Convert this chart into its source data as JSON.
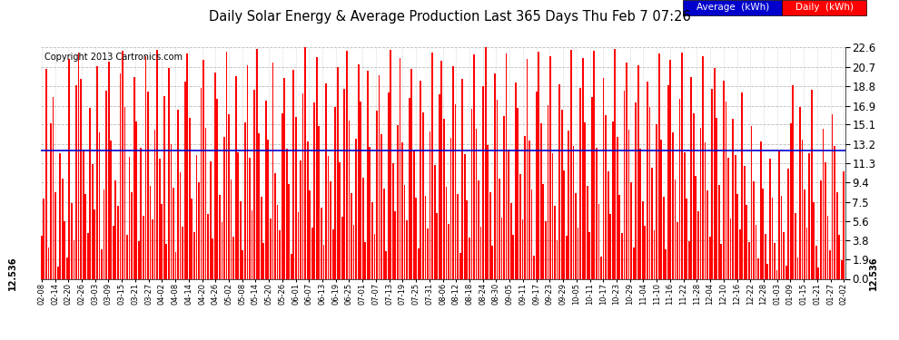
{
  "title": "Daily Solar Energy & Average Production Last 365 Days Thu Feb 7 07:26",
  "copyright": "Copyright 2013 Cartronics.com",
  "average_value": 12.536,
  "bar_color": "#ff0000",
  "average_line_color": "#0000cd",
  "background_color": "#ffffff",
  "plot_bg_color": "#ffffff",
  "yticks": [
    0.0,
    1.9,
    3.8,
    5.6,
    7.5,
    9.4,
    11.3,
    13.2,
    15.1,
    16.9,
    18.8,
    20.7,
    22.6
  ],
  "ylim": [
    0.0,
    22.6
  ],
  "legend_avg_bg": "#0000cc",
  "legend_daily_bg": "#ff0000",
  "legend_text_color": "#ffffff",
  "xtick_labels": [
    "02-08",
    "02-14",
    "02-20",
    "02-26",
    "03-03",
    "03-09",
    "03-15",
    "03-21",
    "03-27",
    "04-02",
    "04-08",
    "04-14",
    "04-20",
    "04-26",
    "05-02",
    "05-08",
    "05-14",
    "05-20",
    "05-26",
    "06-01",
    "06-07",
    "06-13",
    "06-19",
    "06-25",
    "07-01",
    "07-07",
    "07-13",
    "07-19",
    "07-25",
    "07-31",
    "08-06",
    "08-12",
    "08-18",
    "08-24",
    "08-30",
    "09-05",
    "09-11",
    "09-17",
    "09-23",
    "09-29",
    "10-05",
    "10-11",
    "10-17",
    "10-23",
    "10-29",
    "11-04",
    "11-10",
    "11-16",
    "11-22",
    "11-28",
    "12-04",
    "12-10",
    "12-16",
    "12-22",
    "12-28",
    "01-03",
    "01-09",
    "01-15",
    "01-21",
    "01-27",
    "02-02"
  ],
  "daily_values": [
    4.2,
    7.8,
    20.5,
    3.1,
    15.2,
    17.8,
    8.5,
    1.2,
    12.3,
    9.8,
    5.6,
    2.1,
    21.5,
    7.4,
    3.8,
    18.9,
    22.1,
    19.5,
    12.6,
    8.3,
    4.5,
    16.7,
    11.2,
    6.8,
    20.8,
    14.3,
    2.9,
    8.7,
    18.4,
    21.2,
    13.5,
    5.2,
    9.6,
    7.1,
    20.1,
    22.3,
    16.8,
    4.3,
    11.9,
    8.5,
    19.7,
    15.4,
    3.7,
    12.8,
    6.2,
    21.8,
    18.3,
    9.1,
    5.8,
    14.6,
    22.4,
    11.7,
    7.3,
    17.9,
    3.4,
    20.6,
    13.2,
    8.9,
    2.6,
    16.5,
    10.4,
    5.1,
    19.3,
    22.0,
    15.7,
    7.8,
    4.6,
    12.1,
    9.4,
    18.7,
    21.4,
    14.8,
    6.3,
    11.5,
    3.9,
    20.2,
    17.6,
    8.2,
    5.5,
    13.9,
    22.2,
    16.1,
    9.7,
    4.1,
    19.8,
    12.4,
    7.6,
    2.8,
    15.3,
    20.9,
    11.8,
    6.7,
    18.5,
    22.5,
    14.2,
    8.0,
    3.5,
    17.4,
    13.6,
    5.9,
    21.1,
    10.3,
    7.2,
    4.7,
    16.2,
    19.6,
    12.7,
    9.3,
    2.4,
    20.4,
    15.8,
    6.5,
    11.6,
    18.1,
    22.6,
    13.4,
    8.6,
    5.0,
    17.2,
    21.7,
    14.9,
    7.0,
    3.3,
    19.1,
    12.0,
    9.5,
    4.8,
    16.8,
    20.7,
    11.4,
    6.1,
    18.6,
    22.3,
    15.5,
    8.4,
    5.3,
    13.7,
    21.0,
    17.3,
    9.9,
    3.6,
    20.3,
    12.9,
    7.5,
    4.4,
    16.4,
    19.9,
    14.1,
    8.8,
    2.7,
    18.2,
    22.4,
    11.3,
    6.6,
    15.0,
    21.6,
    13.3,
    9.2,
    5.7,
    17.7,
    20.5,
    12.5,
    7.9,
    3.0,
    19.4,
    16.3,
    8.1,
    4.9,
    14.4,
    22.1,
    11.1,
    6.4,
    18.0,
    21.3,
    15.6,
    9.0,
    5.4,
    13.8,
    20.8,
    17.1,
    8.3,
    2.5,
    19.5,
    12.2,
    7.7,
    4.0,
    16.6,
    21.9,
    14.7,
    9.6,
    5.1,
    18.8,
    22.6,
    13.1,
    8.5,
    3.2,
    20.1,
    17.5,
    9.8,
    6.0,
    15.9,
    22.0,
    12.6,
    7.4,
    4.3,
    19.2,
    16.7,
    10.2,
    5.8,
    14.0,
    21.5,
    13.5,
    8.7,
    2.3,
    18.3,
    22.2,
    15.2,
    9.3,
    5.6,
    17.0,
    21.8,
    12.3,
    7.1,
    3.8,
    19.0,
    16.5,
    10.6,
    4.2,
    14.5,
    22.4,
    13.0,
    8.4,
    5.0,
    18.7,
    21.6,
    15.3,
    9.1,
    4.6,
    17.8,
    22.3,
    12.8,
    7.3,
    2.2,
    19.6,
    16.0,
    10.5,
    6.3,
    15.4,
    22.5,
    13.9,
    8.2,
    4.5,
    18.4,
    21.1,
    14.6,
    9.4,
    3.1,
    17.2,
    20.9,
    12.7,
    7.6,
    5.2,
    19.3,
    16.8,
    10.9,
    4.7,
    15.1,
    22.0,
    13.6,
    8.0,
    2.9,
    18.9,
    21.4,
    14.3,
    9.7,
    5.5,
    17.6,
    22.1,
    12.4,
    7.8,
    3.7,
    19.7,
    16.2,
    10.1,
    6.6,
    14.8,
    21.8,
    13.3,
    8.6,
    4.1,
    18.6,
    20.6,
    15.7,
    9.2,
    3.4,
    19.4,
    17.3,
    11.8,
    5.9,
    15.6,
    12.1,
    8.3,
    4.8,
    18.2,
    11.0,
    7.2,
    3.6,
    14.9,
    9.5,
    5.3,
    2.0,
    13.4,
    8.8,
    4.4,
    1.5,
    11.7,
    7.9,
    3.5,
    0.8,
    12.5,
    8.1,
    4.6,
    1.3,
    10.8,
    15.2,
    18.9,
    6.4,
    2.1,
    16.8,
    13.6,
    8.7,
    5.0,
    12.3,
    18.5,
    7.5,
    3.2,
    1.1,
    9.6,
    14.7,
    11.4,
    6.2,
    2.8,
    16.1,
    13.0,
    8.5,
    4.3,
    1.8,
    10.5
  ]
}
